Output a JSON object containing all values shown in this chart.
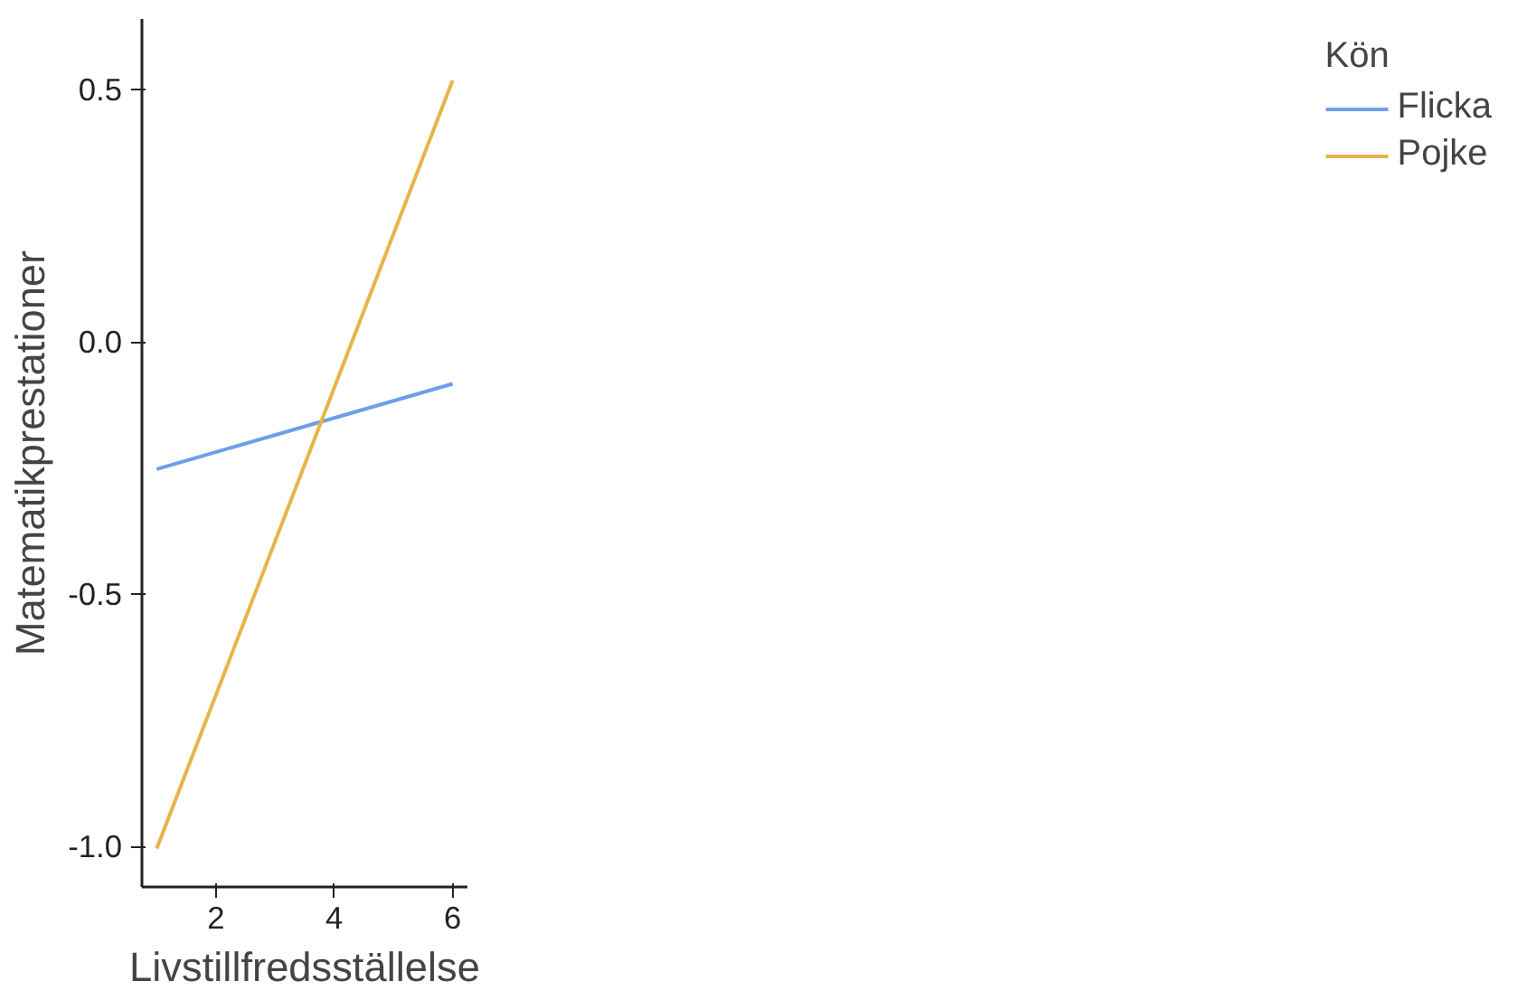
{
  "chart_data": {
    "type": "line",
    "xlabel": "Livstillfredsställelse",
    "ylabel": "Matematikprestationer",
    "legend_title": "Kön",
    "x": [
      1,
      6
    ],
    "series": [
      {
        "name": "Flicka",
        "color": "#6d9eeb",
        "values": [
          -0.252,
          -0.083
        ]
      },
      {
        "name": "Pojke",
        "color": "#e8b44a",
        "values": [
          -1.004,
          0.518
        ]
      }
    ],
    "xlim": [
      0.75,
      6.25
    ],
    "ylim": [
      -1.08,
      0.64
    ],
    "xticks": [
      2,
      4,
      6
    ],
    "yticks": [
      {
        "value": 0.5,
        "label": "0.5"
      },
      {
        "value": 0,
        "label": "0.0"
      },
      {
        "value": -0.5,
        "label": "-0.5"
      },
      {
        "value": -1,
        "label": "-1.0"
      }
    ],
    "grid": false,
    "legend": "right",
    "line_style": "solid",
    "marker": "none"
  }
}
